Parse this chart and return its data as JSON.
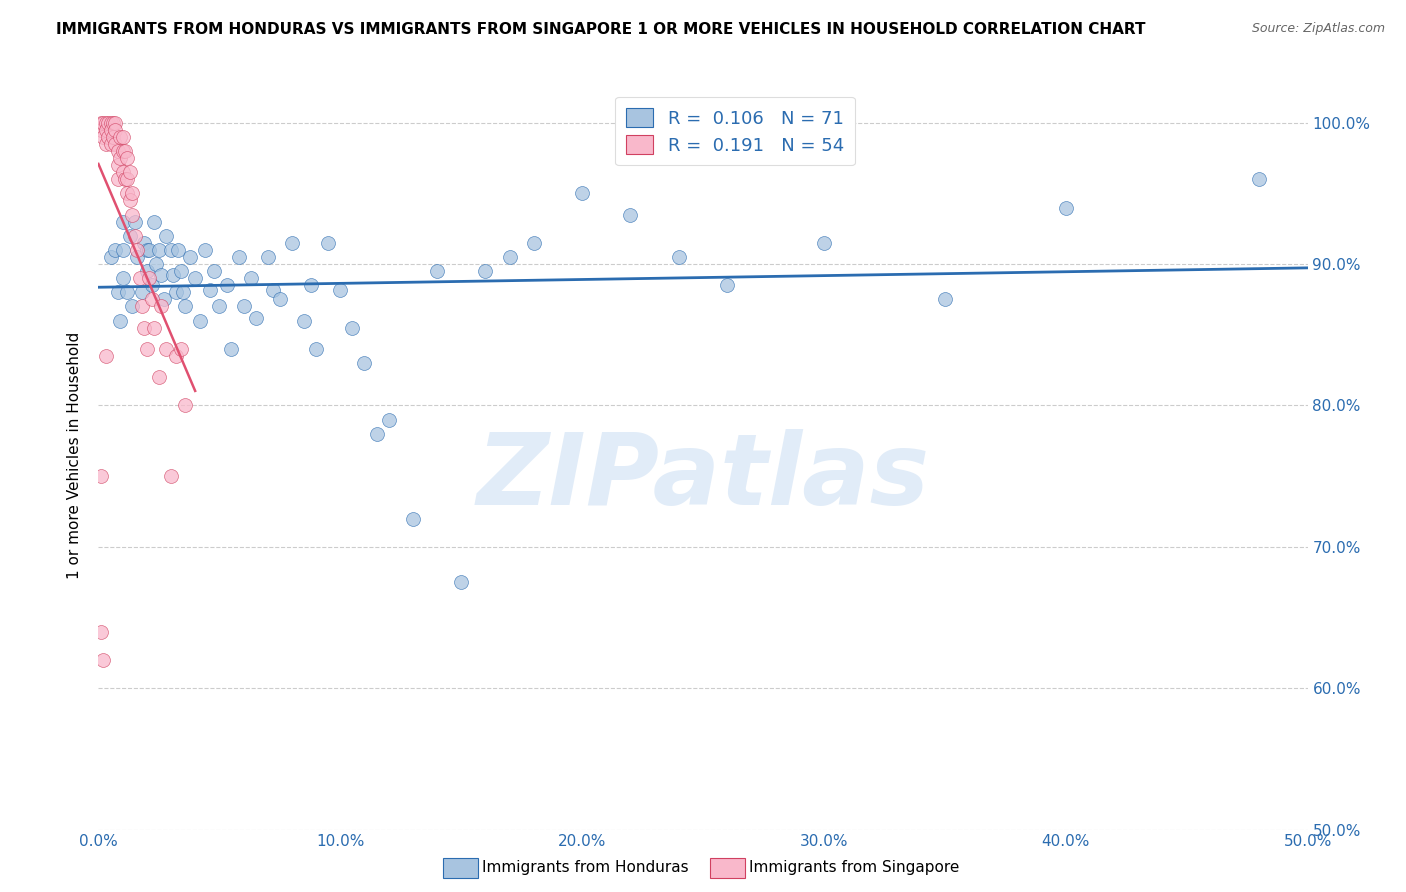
{
  "title": "IMMIGRANTS FROM HONDURAS VS IMMIGRANTS FROM SINGAPORE 1 OR MORE VEHICLES IN HOUSEHOLD CORRELATION CHART",
  "source": "Source: ZipAtlas.com",
  "ylabel": "1 or more Vehicles in Household",
  "yaxis_values": [
    0.5,
    0.6,
    0.7,
    0.8,
    0.9,
    1.0
  ],
  "xlim": [
    0.0,
    0.5
  ],
  "ylim": [
    0.5,
    1.03
  ],
  "legend_R_honduras": "0.106",
  "legend_N_honduras": "71",
  "legend_R_singapore": "0.191",
  "legend_N_singapore": "54",
  "color_honduras": "#a8c4e0",
  "color_singapore": "#f9b8cb",
  "trendline_color_honduras": "#2b6cb0",
  "trendline_color_singapore": "#e05070",
  "legend_label_honduras": "Immigrants from Honduras",
  "legend_label_singapore": "Immigrants from Singapore",
  "watermark": "ZIPatlas",
  "honduras_x": [
    0.005,
    0.007,
    0.008,
    0.009,
    0.01,
    0.01,
    0.01,
    0.012,
    0.013,
    0.014,
    0.015,
    0.016,
    0.018,
    0.019,
    0.02,
    0.02,
    0.021,
    0.022,
    0.023,
    0.024,
    0.025,
    0.026,
    0.027,
    0.028,
    0.03,
    0.031,
    0.032,
    0.033,
    0.034,
    0.035,
    0.036,
    0.038,
    0.04,
    0.042,
    0.044,
    0.046,
    0.048,
    0.05,
    0.053,
    0.055,
    0.058,
    0.06,
    0.063,
    0.065,
    0.07,
    0.072,
    0.075,
    0.08,
    0.085,
    0.088,
    0.09,
    0.095,
    0.1,
    0.105,
    0.11,
    0.115,
    0.12,
    0.13,
    0.14,
    0.15,
    0.16,
    0.17,
    0.18,
    0.2,
    0.22,
    0.24,
    0.26,
    0.3,
    0.35,
    0.4,
    0.48
  ],
  "honduras_y": [
    0.905,
    0.91,
    0.88,
    0.86,
    0.93,
    0.91,
    0.89,
    0.88,
    0.92,
    0.87,
    0.93,
    0.905,
    0.88,
    0.915,
    0.91,
    0.895,
    0.91,
    0.885,
    0.93,
    0.9,
    0.91,
    0.892,
    0.875,
    0.92,
    0.91,
    0.892,
    0.88,
    0.91,
    0.895,
    0.88,
    0.87,
    0.905,
    0.89,
    0.86,
    0.91,
    0.882,
    0.895,
    0.87,
    0.885,
    0.84,
    0.905,
    0.87,
    0.89,
    0.862,
    0.905,
    0.882,
    0.875,
    0.915,
    0.86,
    0.885,
    0.84,
    0.915,
    0.882,
    0.855,
    0.83,
    0.78,
    0.79,
    0.72,
    0.895,
    0.675,
    0.895,
    0.905,
    0.915,
    0.95,
    0.935,
    0.905,
    0.885,
    0.915,
    0.875,
    0.94,
    0.96
  ],
  "singapore_x": [
    0.001,
    0.001,
    0.002,
    0.002,
    0.003,
    0.003,
    0.003,
    0.004,
    0.004,
    0.005,
    0.005,
    0.005,
    0.006,
    0.006,
    0.007,
    0.007,
    0.007,
    0.008,
    0.008,
    0.008,
    0.009,
    0.009,
    0.01,
    0.01,
    0.01,
    0.011,
    0.011,
    0.012,
    0.012,
    0.012,
    0.013,
    0.013,
    0.014,
    0.014,
    0.015,
    0.016,
    0.017,
    0.018,
    0.019,
    0.02,
    0.021,
    0.022,
    0.023,
    0.025,
    0.026,
    0.028,
    0.03,
    0.032,
    0.034,
    0.036,
    0.001,
    0.002,
    0.001,
    0.003
  ],
  "singapore_y": [
    1.0,
    0.995,
    1.0,
    0.99,
    1.0,
    0.995,
    0.985,
    1.0,
    0.99,
    1.0,
    0.995,
    0.985,
    1.0,
    0.99,
    1.0,
    0.995,
    0.985,
    0.98,
    0.97,
    0.96,
    0.99,
    0.975,
    0.99,
    0.98,
    0.965,
    0.98,
    0.96,
    0.975,
    0.96,
    0.95,
    0.965,
    0.945,
    0.95,
    0.935,
    0.92,
    0.91,
    0.89,
    0.87,
    0.855,
    0.84,
    0.89,
    0.875,
    0.855,
    0.82,
    0.87,
    0.84,
    0.75,
    0.835,
    0.84,
    0.8,
    0.64,
    0.62,
    0.75,
    0.835
  ]
}
